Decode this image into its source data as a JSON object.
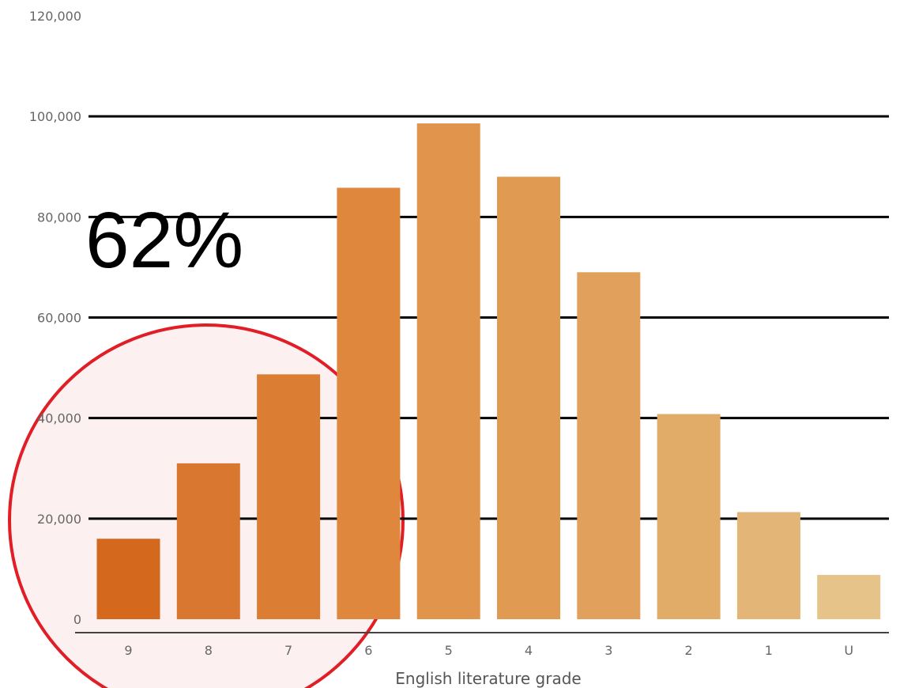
{
  "chart_data": {
    "type": "bar",
    "categories": [
      "9",
      "8",
      "7",
      "6",
      "5",
      "4",
      "3",
      "2",
      "1",
      "U"
    ],
    "values": [
      16000,
      31000,
      48700,
      85800,
      98600,
      88000,
      69000,
      40800,
      21300,
      8800
    ],
    "colors": [
      "#d4691e",
      "#d97630",
      "#dc7d34",
      "#de873d",
      "#e0944c",
      "#e09a52",
      "#e1a05c",
      "#e1ab68",
      "#e3b577",
      "#e5c389"
    ],
    "y_ticks": [
      0,
      20000,
      40000,
      60000,
      80000,
      100000,
      120000
    ],
    "y_tick_labels": [
      "0",
      "20,000",
      "40,000",
      "60,000",
      "80,000",
      "100,000",
      "120,000"
    ],
    "ylim": [
      0,
      120000
    ],
    "gridlines": [
      20000,
      40000,
      60000,
      80000,
      100000
    ],
    "title": "",
    "xlabel": "English literature grade",
    "ylabel": "",
    "highlight": {
      "categories": [
        "9",
        "8",
        "7"
      ],
      "shape": "circle",
      "outline_color": "#e11d26",
      "fill_color": "#fdf0f0"
    },
    "callout": {
      "text": "62%"
    }
  }
}
